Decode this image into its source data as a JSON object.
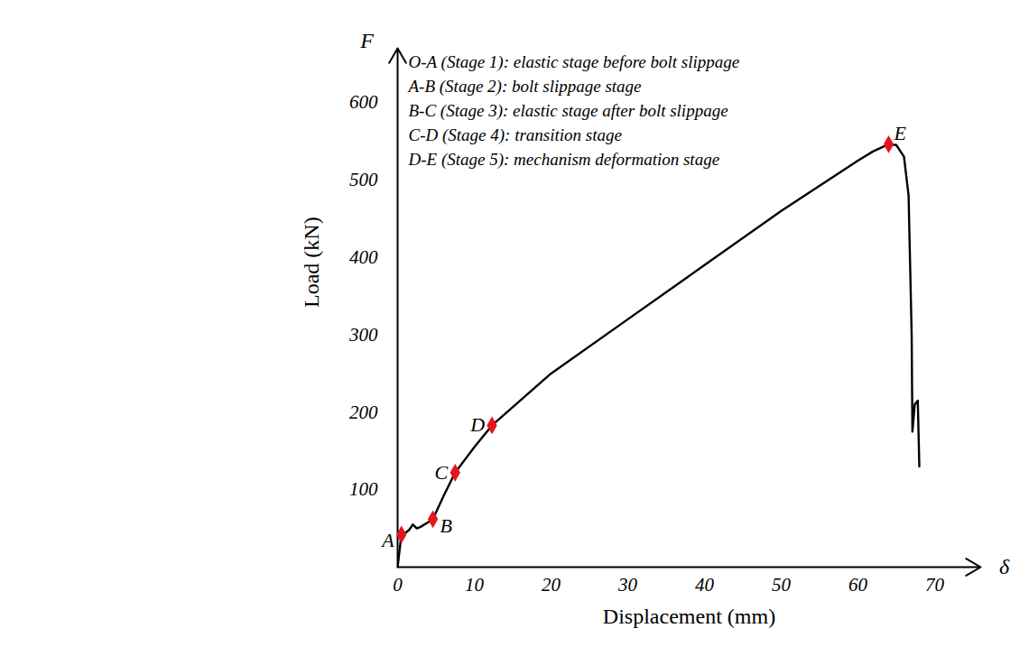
{
  "chart_data": {
    "type": "line",
    "x_label": "Displacement (mm)",
    "y_label": "Load (kN)",
    "x_symbol": "δ",
    "y_symbol": "F",
    "annotations": [
      "O-A (Stage 1): elastic stage before bolt slippage",
      "A-B (Stage 2): bolt slippage stage",
      "B-C (Stage 3): elastic stage after bolt slippage",
      "C-D (Stage 4): transition stage",
      "D-E (Stage 5): mechanism deformation stage"
    ],
    "x": [
      0,
      0.5,
      1,
      1.5,
      2,
      2.5,
      3,
      3.5,
      4,
      4.6,
      6,
      7.5,
      10,
      12.3,
      20,
      30,
      40,
      50,
      60,
      62,
      64,
      65,
      66,
      66.6,
      67,
      67.1,
      67.4,
      67.8,
      68
    ],
    "values": [
      0,
      42,
      44,
      48,
      55,
      50,
      52,
      55,
      58,
      62,
      92,
      122,
      155,
      183,
      250,
      320,
      390,
      460,
      525,
      537,
      546,
      545,
      530,
      480,
      300,
      175,
      210,
      215,
      130
    ],
    "color": "#000000",
    "points": {
      "labels": [
        "A",
        "B",
        "C",
        "D",
        "E"
      ],
      "x": [
        0.5,
        4.6,
        7.5,
        12.3,
        64
      ],
      "y": [
        42,
        62,
        122,
        183,
        546
      ],
      "color": "#e8141b",
      "marker": "diamond"
    },
    "xlim": [
      0,
      76
    ],
    "ylim": [
      0,
      670
    ],
    "xticks": [
      0,
      10,
      20,
      30,
      40,
      50,
      60,
      70
    ],
    "yticks": [
      100,
      200,
      300,
      400,
      500,
      600
    ]
  }
}
